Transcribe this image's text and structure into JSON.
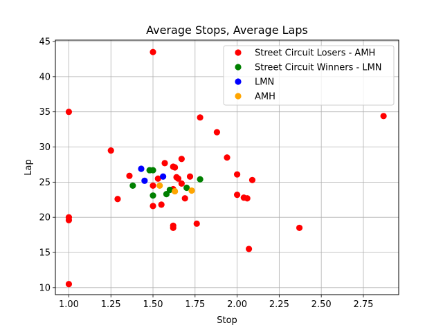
{
  "chart_data": {
    "type": "scatter",
    "title": "Average Stops, Average Laps",
    "xlabel": "Stop",
    "ylabel": "Lap",
    "xlim": [
      0.92,
      2.96
    ],
    "ylim": [
      9,
      45.2
    ],
    "xticks": [
      1.0,
      1.25,
      1.5,
      1.75,
      2.0,
      2.25,
      2.5,
      2.75
    ],
    "xtick_labels": [
      "1.00",
      "1.25",
      "1.50",
      "1.75",
      "2.00",
      "2.25",
      "2.50",
      "2.75"
    ],
    "yticks": [
      10,
      15,
      20,
      25,
      30,
      35,
      40,
      45
    ],
    "ytick_labels": [
      "10",
      "15",
      "20",
      "25",
      "30",
      "35",
      "40",
      "45"
    ],
    "grid": true,
    "legend_position": "top-right",
    "series": [
      {
        "name": "Street Circuit Losers - AMH",
        "color": "#ff0000",
        "points": [
          [
            1.0,
            35.0
          ],
          [
            1.0,
            20.0
          ],
          [
            1.0,
            19.6
          ],
          [
            1.0,
            10.5
          ],
          [
            1.25,
            29.5
          ],
          [
            1.29,
            22.6
          ],
          [
            1.36,
            25.9
          ],
          [
            1.5,
            43.5
          ],
          [
            1.5,
            24.5
          ],
          [
            1.5,
            21.6
          ],
          [
            1.53,
            25.5
          ],
          [
            1.55,
            21.8
          ],
          [
            1.57,
            27.7
          ],
          [
            1.62,
            27.2
          ],
          [
            1.63,
            27.1
          ],
          [
            1.64,
            25.7
          ],
          [
            1.65,
            25.5
          ],
          [
            1.67,
            28.3
          ],
          [
            1.67,
            24.8
          ],
          [
            1.69,
            22.7
          ],
          [
            1.62,
            18.8
          ],
          [
            1.62,
            18.5
          ],
          [
            1.62,
            24.0
          ],
          [
            1.72,
            25.8
          ],
          [
            1.76,
            19.1
          ],
          [
            1.78,
            34.2
          ],
          [
            1.88,
            32.1
          ],
          [
            1.94,
            28.5
          ],
          [
            2.0,
            26.1
          ],
          [
            2.0,
            23.2
          ],
          [
            2.04,
            22.8
          ],
          [
            2.06,
            22.7
          ],
          [
            2.07,
            15.5
          ],
          [
            2.09,
            25.3
          ],
          [
            2.37,
            18.5
          ],
          [
            2.87,
            34.4
          ]
        ]
      },
      {
        "name": "Street Circuit Winners - LMN",
        "color": "#008000",
        "points": [
          [
            1.38,
            24.5
          ],
          [
            1.48,
            26.7
          ],
          [
            1.5,
            26.7
          ],
          [
            1.5,
            23.1
          ],
          [
            1.58,
            23.3
          ],
          [
            1.6,
            23.9
          ],
          [
            1.7,
            24.2
          ],
          [
            1.78,
            25.4
          ]
        ]
      },
      {
        "name": "LMN",
        "color": "#0000ff",
        "points": [
          [
            1.43,
            26.9
          ],
          [
            1.45,
            25.2
          ],
          [
            1.56,
            25.8
          ]
        ]
      },
      {
        "name": "AMH",
        "color": "#ffa500",
        "points": [
          [
            1.54,
            24.5
          ],
          [
            1.63,
            23.7
          ],
          [
            1.73,
            23.8
          ]
        ]
      }
    ]
  }
}
